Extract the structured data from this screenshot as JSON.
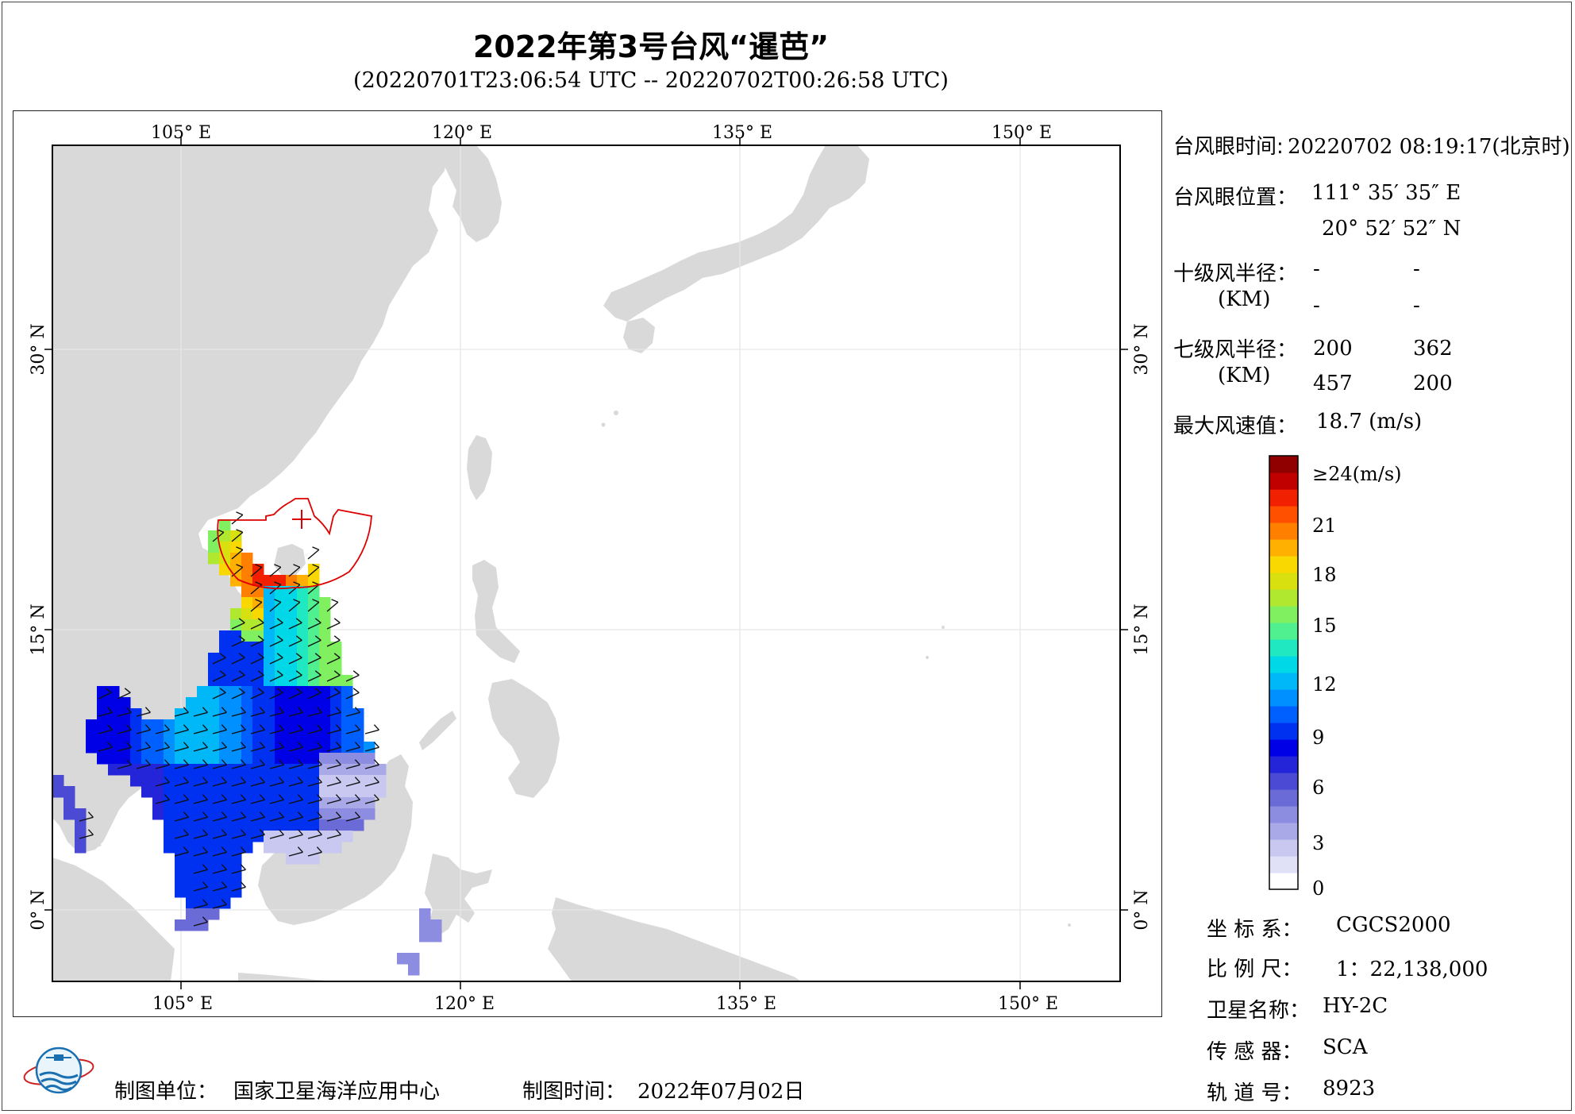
{
  "title": "2022年第3号台风“暹芭”",
  "subtitle": "(20220701T23:06:54 UTC -- 20220702T00:26:58 UTC)",
  "map": {
    "lon_labels_top": [
      "105° E",
      "120° E",
      "135° E",
      "150° E"
    ],
    "lon_labels_bottom": [
      "105° E",
      "120° E",
      "135° E",
      "150° E"
    ],
    "lat_labels_left": [
      "30° N",
      "15° N",
      "0° N"
    ],
    "lat_labels_right": [
      "30° N",
      "15° N",
      "0° N"
    ],
    "land_color": "#d9d9d9",
    "grid_color": "#e6e6e6",
    "wind_radius_color": "#dd0000"
  },
  "info": {
    "eye_time_label": "台风眼时间:",
    "eye_time_value": "20220702 08:19:17(北京时)",
    "eye_pos_label": "台风眼位置：",
    "eye_lon": "111° 35′ 35″ E",
    "eye_lat": "20° 52′ 52″ N",
    "r10_label": "十级风半径：",
    "r10_unit": "(KM)",
    "r10_values": [
      "-",
      "-",
      "-",
      "-"
    ],
    "r7_label": "七级风半径：",
    "r7_unit": "(KM)",
    "r7_values": [
      "200",
      "362",
      "457",
      "200"
    ],
    "max_wind_label": "最大风速值：",
    "max_wind_value": "18.7  (m/s)"
  },
  "colorbar": {
    "ticks": [
      "≥24(m/s)",
      "21",
      "18",
      "15",
      "12",
      "9",
      "6",
      "3",
      "0"
    ],
    "colors": [
      "#ffffff",
      "#e0e0f6",
      "#c8c8f0",
      "#a9a9e8",
      "#8c8ce0",
      "#6b6bd8",
      "#4a4ad4",
      "#2424d8",
      "#0000e6",
      "#0030f0",
      "#0060ff",
      "#0090ff",
      "#00b8f8",
      "#00d8e8",
      "#20e8c0",
      "#50f090",
      "#80f060",
      "#b0e830",
      "#d8e010",
      "#f8d800",
      "#ffb000",
      "#ff8000",
      "#ff5000",
      "#f02000",
      "#c00000",
      "#900000"
    ]
  },
  "meta": {
    "crs_label": "坐 标 系：",
    "crs_value": "CGCS2000",
    "scale_label": "比 例 尺：",
    "scale_value": "1：22,138,000",
    "satellite_label": "卫星名称：",
    "satellite_value": "HY-2C",
    "sensor_label": "传 感 器：",
    "sensor_value": "SCA",
    "orbit_label": "轨 道 号：",
    "orbit_value": "8923"
  },
  "footer": {
    "producer_label": "制图单位：",
    "producer_value": "国家卫星海洋应用中心",
    "date_label": "制图时间：",
    "date_value": "2022年07月02日"
  }
}
